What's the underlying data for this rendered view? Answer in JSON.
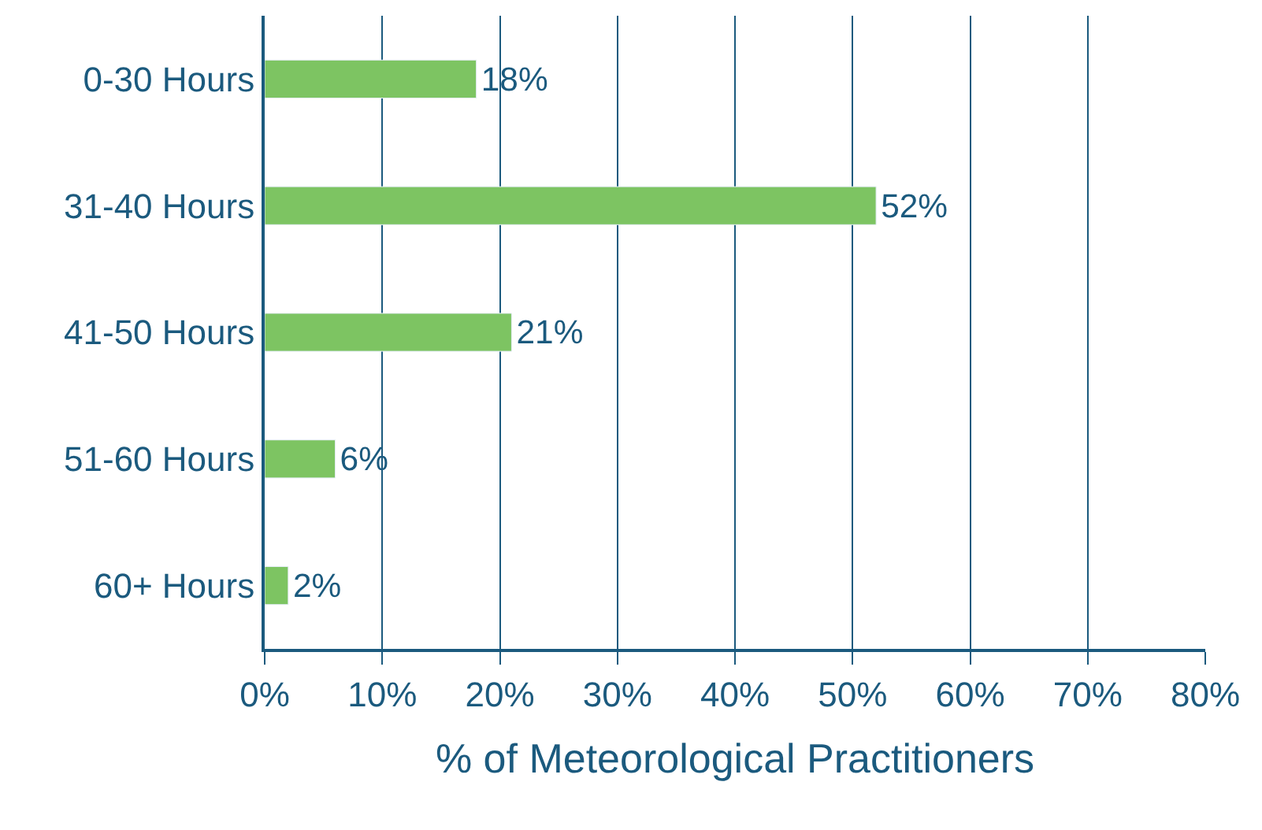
{
  "chart_data": {
    "type": "bar",
    "orientation": "horizontal",
    "categories": [
      "0-30 Hours",
      "31-40 Hours",
      "41-50 Hours",
      "51-60 Hours",
      "60+ Hours"
    ],
    "values": [
      18,
      52,
      21,
      6,
      2
    ],
    "value_labels": [
      "18%",
      "52%",
      "21%",
      "6%",
      "2%"
    ],
    "color": "#7dc462",
    "xlabel": "% of Meteorological Practitioners",
    "xlim": [
      0,
      80
    ],
    "xticks": [
      {
        "value": 0,
        "label": "0%"
      },
      {
        "value": 10,
        "label": "10%"
      },
      {
        "value": 20,
        "label": "20%"
      },
      {
        "value": 30,
        "label": "30%"
      },
      {
        "value": 40,
        "label": "40%"
      },
      {
        "value": 50,
        "label": "50%"
      },
      {
        "value": 60,
        "label": "60%"
      },
      {
        "value": 70,
        "label": "70%"
      },
      {
        "value": 80,
        "label": "80%"
      }
    ],
    "grid": "x",
    "legend": false
  }
}
